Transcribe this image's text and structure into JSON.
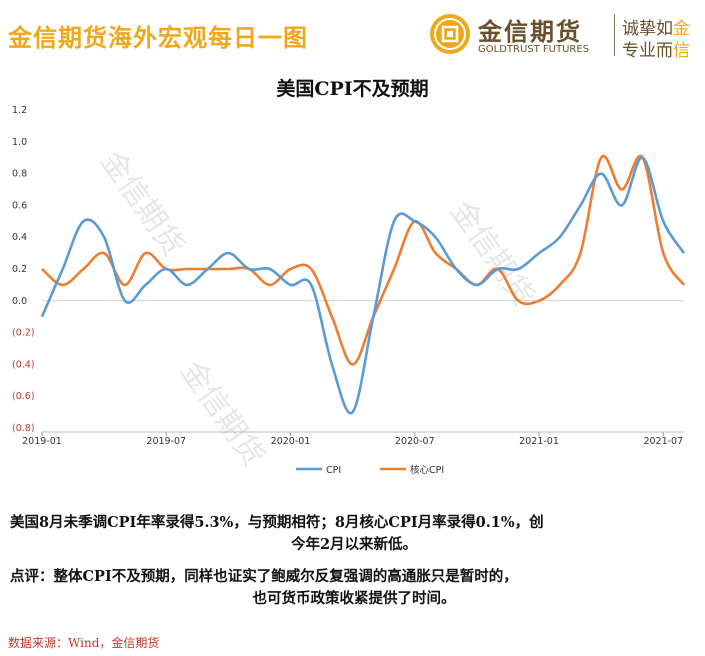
{
  "header": {
    "banner_title": "金信期货海外宏观每日一图",
    "logo_cn": "金信期货",
    "logo_en": "GOLDTRUST FUTURES",
    "slogan_line1": "诚挚如",
    "slogan_line1_hl": "金",
    "slogan_line2": "专业而",
    "slogan_line2_hl": "信",
    "accent_color": "#f0a818",
    "brand_color": "#6b4f2a"
  },
  "watermark": "金信期货",
  "chart_data": {
    "type": "line",
    "title": "美国CPI不及预期",
    "x": [
      "2019-01",
      "2019-02",
      "2019-03",
      "2019-04",
      "2019-05",
      "2019-06",
      "2019-07",
      "2019-08",
      "2019-09",
      "2019-10",
      "2019-11",
      "2019-12",
      "2020-01",
      "2020-02",
      "2020-03",
      "2020-04",
      "2020-05",
      "2020-06",
      "2020-07",
      "2020-08",
      "2020-09",
      "2020-10",
      "2020-11",
      "2020-12",
      "2021-01",
      "2021-02",
      "2021-03",
      "2021-04",
      "2021-05",
      "2021-06",
      "2021-07",
      "2021-08"
    ],
    "x_tick_labels": [
      "2019-01",
      "2019-07",
      "2020-01",
      "2020-07",
      "2021-01",
      "2021-07"
    ],
    "x_tick_index": [
      0,
      6,
      12,
      18,
      24,
      30
    ],
    "ylim": [
      -0.8,
      1.2
    ],
    "y_ticks": [
      1.2,
      1.0,
      0.8,
      0.6,
      0.4,
      0.2,
      0.0,
      -0.2,
      -0.4,
      -0.6,
      -0.8
    ],
    "y_tick_labels": [
      "1.2",
      "1.0",
      "0.8",
      "0.6",
      "0.4",
      "0.2",
      "0.0",
      "(0.2)",
      "(0.4)",
      "(0.6)",
      "(0.8)"
    ],
    "negative_label_color": "#c0392b",
    "grid": false,
    "legend_position": "bottom-center",
    "series": [
      {
        "name": "CPI",
        "color": "#5b9bd5",
        "values": [
          -0.1,
          0.2,
          0.5,
          0.4,
          0.0,
          0.1,
          0.2,
          0.1,
          0.2,
          0.3,
          0.2,
          0.2,
          0.1,
          0.1,
          -0.4,
          -0.7,
          -0.1,
          0.5,
          0.5,
          0.4,
          0.2,
          0.1,
          0.2,
          0.2,
          0.3,
          0.4,
          0.6,
          0.8,
          0.6,
          0.9,
          0.5,
          0.3
        ]
      },
      {
        "name": "核心CPI",
        "color": "#ed7d31",
        "values": [
          0.2,
          0.1,
          0.2,
          0.3,
          0.1,
          0.3,
          0.2,
          0.2,
          0.2,
          0.2,
          0.2,
          0.1,
          0.2,
          0.2,
          -0.1,
          -0.4,
          -0.1,
          0.2,
          0.5,
          0.3,
          0.2,
          0.1,
          0.2,
          0.0,
          0.0,
          0.1,
          0.3,
          0.9,
          0.7,
          0.9,
          0.3,
          0.1
        ]
      }
    ]
  },
  "summary": {
    "line1": "美国8月未季调CPI年率录得5.3%，与预期相符；8月核心CPI月率录得0.1%，创",
    "line2": "今年2月以来新低。"
  },
  "comment": {
    "line1": "点评：整体CPI不及预期，同样也证实了鲍威尔反复强调的高通胀只是暂时的，",
    "line2": "也可货币政策收紧提供了时间。"
  },
  "source": "数据来源：Wind，金信期货"
}
